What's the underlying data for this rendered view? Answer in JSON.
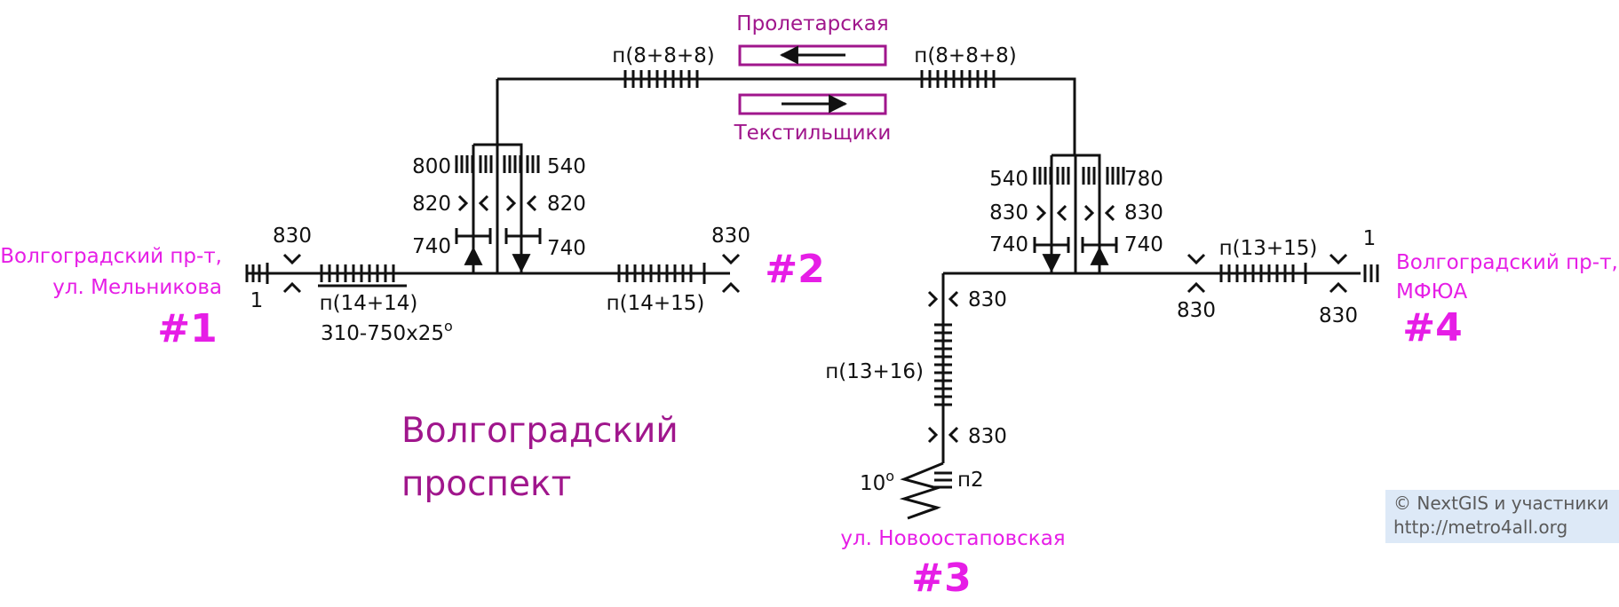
{
  "station_name": [
    "Волгоградский",
    "проспект"
  ],
  "platform": {
    "north": "Пролетарская",
    "south": "Текстильщики"
  },
  "exits": {
    "e1": {
      "number": "#1",
      "name": [
        "Волгоградский пр-т,",
        "ул. Мельникова"
      ]
    },
    "e2": {
      "number": "#2"
    },
    "e3": {
      "number": "#3",
      "name": [
        "ул. Новоостаповская"
      ]
    },
    "e4": {
      "number": "#4",
      "name": [
        "Волгоградский пр-т,",
        "МФЮА"
      ]
    }
  },
  "labels": {
    "top_left_stairs": "п(8+8+8)",
    "top_right_stairs": "п(8+8+8)",
    "left_turn_800": "800",
    "left_turn_540": "540",
    "left_820_a": "820",
    "left_820_b": "820",
    "left_740_a": "740",
    "left_740_b": "740",
    "e1_830": "830",
    "e1_1": "1",
    "e1_stairs": "п(14+14)",
    "e1_ramp": "310-750x25",
    "e1_ramp_deg": "o",
    "e2_stairs": "п(14+15)",
    "e2_830": "830",
    "right_540": "540",
    "right_780": "780",
    "right_830_a": "830",
    "right_830_b": "830",
    "right_740_a": "740",
    "right_740_b": "740",
    "e4_stairs": "п(13+15)",
    "e4_1": "1",
    "e4_830_a": "830",
    "e4_830_b": "830",
    "e3_830_a": "830",
    "e3_stairs": "п(13+16)",
    "e3_830_b": "830",
    "e3_ramp": "10",
    "e3_ramp_deg": "o",
    "e3_p2": "п2"
  },
  "attribution": {
    "line1": "© NextGIS и участники",
    "line2": "http://metro4all.org"
  },
  "colors": {
    "exit": "#e61ee6",
    "platform": "#a0168c",
    "attribution_bg": "#dde9f7"
  }
}
